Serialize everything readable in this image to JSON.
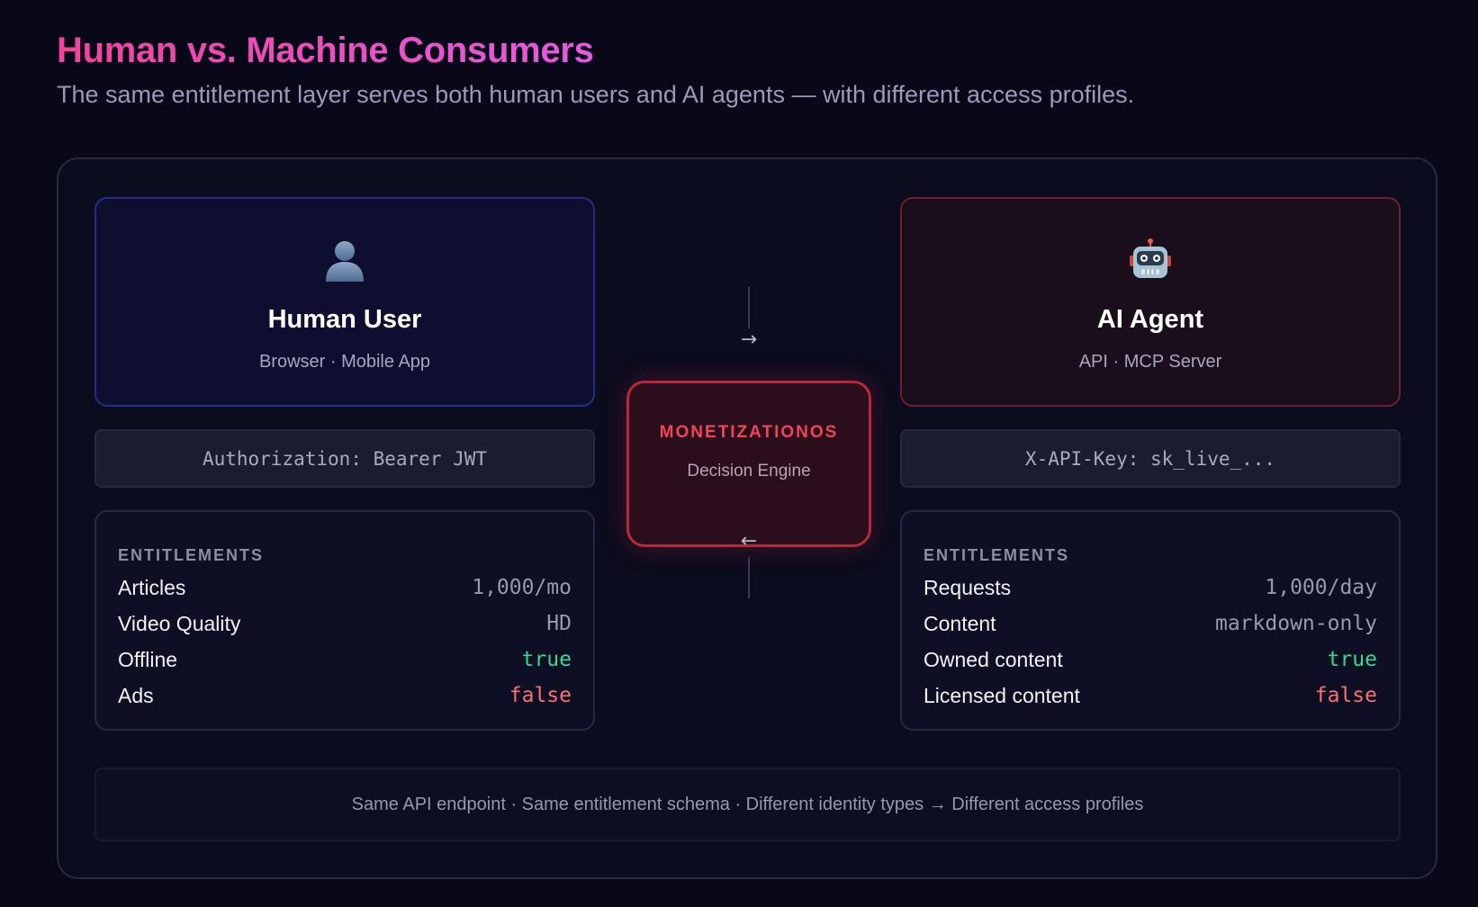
{
  "header": {
    "title": "Human vs. Machine Consumers",
    "subtitle": "The same entitlement layer serves both human users and AI agents — with different access profiles."
  },
  "human": {
    "icon": "person-icon",
    "name": "Human User",
    "channels": "Browser · Mobile App",
    "auth_header": "Authorization: Bearer JWT",
    "entitlements_label": "ENTITLEMENTS",
    "entitlements": [
      {
        "key": "Articles",
        "value": "1,000/mo"
      },
      {
        "key": "Video Quality",
        "value": "HD"
      },
      {
        "key": "Offline",
        "value": "true"
      },
      {
        "key": "Ads",
        "value": "false"
      }
    ]
  },
  "agent": {
    "icon": "robot-icon",
    "name": "AI Agent",
    "channels": "API · MCP Server",
    "auth_header": "X-API-Key: sk_live_...",
    "entitlements_label": "ENTITLEMENTS",
    "entitlements": [
      {
        "key": "Requests",
        "value": "1,000/day"
      },
      {
        "key": "Content",
        "value": "markdown-only"
      },
      {
        "key": "Owned content",
        "value": "true"
      },
      {
        "key": "Licensed content",
        "value": "false"
      }
    ]
  },
  "engine": {
    "brand": "MONETIZATIONOS",
    "role": "Decision Engine",
    "arrow_in": "→",
    "arrow_out": "←"
  },
  "footer": {
    "text": "Same API endpoint · Same entitlement schema · Different identity types → Different access profiles"
  },
  "colors": {
    "title_gradient_start": "#f0449c",
    "title_gradient_end": "#e35be0",
    "human_border": "#2a2b86",
    "agent_border": "#6b1f30",
    "engine_border": "#b52a3a",
    "true_value": "#3dd68c",
    "false_value": "#f87171"
  }
}
